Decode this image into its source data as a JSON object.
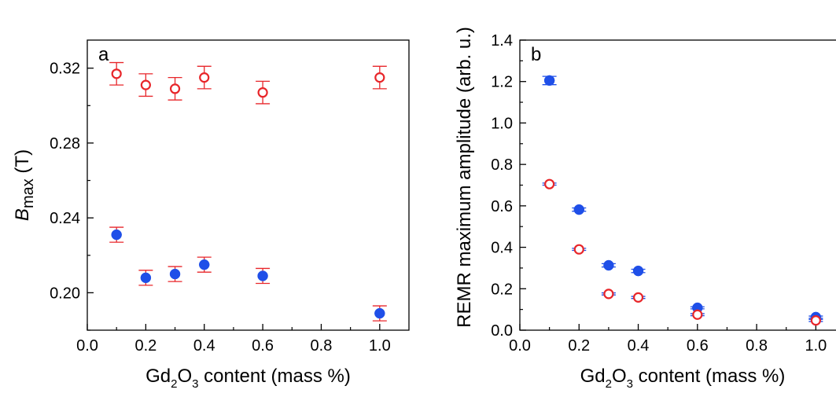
{
  "chart_data": [
    {
      "panel": "a",
      "type": "scatter",
      "xlabel": {
        "main": "Gd",
        "sub1": "2",
        "mid": "O",
        "sub2": "3",
        "tail": " content (mass %)"
      },
      "ylabel": {
        "italic": "B",
        "sub": "max",
        "tail": " (T)"
      },
      "xlim": [
        0.0,
        1.1
      ],
      "ylim": [
        0.18,
        0.335
      ],
      "xticks": [
        "0.0",
        "0.2",
        "0.4",
        "0.6",
        "0.8",
        "1.0"
      ],
      "yticks": [
        "0.20",
        "0.24",
        "0.28",
        "0.32"
      ],
      "grid": false,
      "series": [
        {
          "marker": "open-circle",
          "color": "#e8262a",
          "error_color": "#e8262a",
          "x": [
            0.1,
            0.2,
            0.3,
            0.4,
            0.6,
            1.0
          ],
          "y": [
            0.317,
            0.311,
            0.309,
            0.315,
            0.307,
            0.315
          ],
          "err": [
            0.006,
            0.006,
            0.006,
            0.006,
            0.006,
            0.006
          ]
        },
        {
          "marker": "filled-circle",
          "color": "#1f4fe8",
          "error_color": "#e8262a",
          "x": [
            0.1,
            0.2,
            0.3,
            0.4,
            0.6,
            1.0
          ],
          "y": [
            0.231,
            0.208,
            0.21,
            0.215,
            0.209,
            0.189
          ],
          "err": [
            0.004,
            0.004,
            0.004,
            0.004,
            0.004,
            0.004
          ]
        }
      ]
    },
    {
      "panel": "b",
      "type": "scatter",
      "xlabel": {
        "main": "Gd",
        "sub1": "2",
        "mid": "O",
        "sub2": "3",
        "tail": " content (mass %)"
      },
      "ylabel": {
        "text": "REMR maximum amplitude (arb. u.)"
      },
      "xlim": [
        0.0,
        1.1
      ],
      "ylim": [
        0.0,
        1.4
      ],
      "xticks": [
        "0.0",
        "0.2",
        "0.4",
        "0.6",
        "0.8",
        "1.0"
      ],
      "yticks": [
        "0.0",
        "0.2",
        "0.4",
        "0.6",
        "0.8",
        "1.0",
        "1.2",
        "1.4"
      ],
      "grid": false,
      "series": [
        {
          "marker": "filled-circle",
          "color": "#1f4fe8",
          "error_color": "#1f4fe8",
          "x": [
            0.1,
            0.2,
            0.3,
            0.4,
            0.6,
            1.0
          ],
          "y": [
            1.205,
            0.582,
            0.313,
            0.286,
            0.108,
            0.063
          ],
          "err": [
            0.02,
            0.008,
            0.008,
            0.008,
            0.005,
            0.005
          ]
        },
        {
          "marker": "open-circle",
          "color": "#e8262a",
          "error_color": "#1f4fe8",
          "x": [
            0.1,
            0.2,
            0.3,
            0.4,
            0.6,
            1.0
          ],
          "y": [
            0.705,
            0.39,
            0.175,
            0.158,
            0.075,
            0.047
          ],
          "err": [
            0.005,
            0.005,
            0.005,
            0.005,
            0.005,
            0.005
          ]
        }
      ]
    }
  ]
}
